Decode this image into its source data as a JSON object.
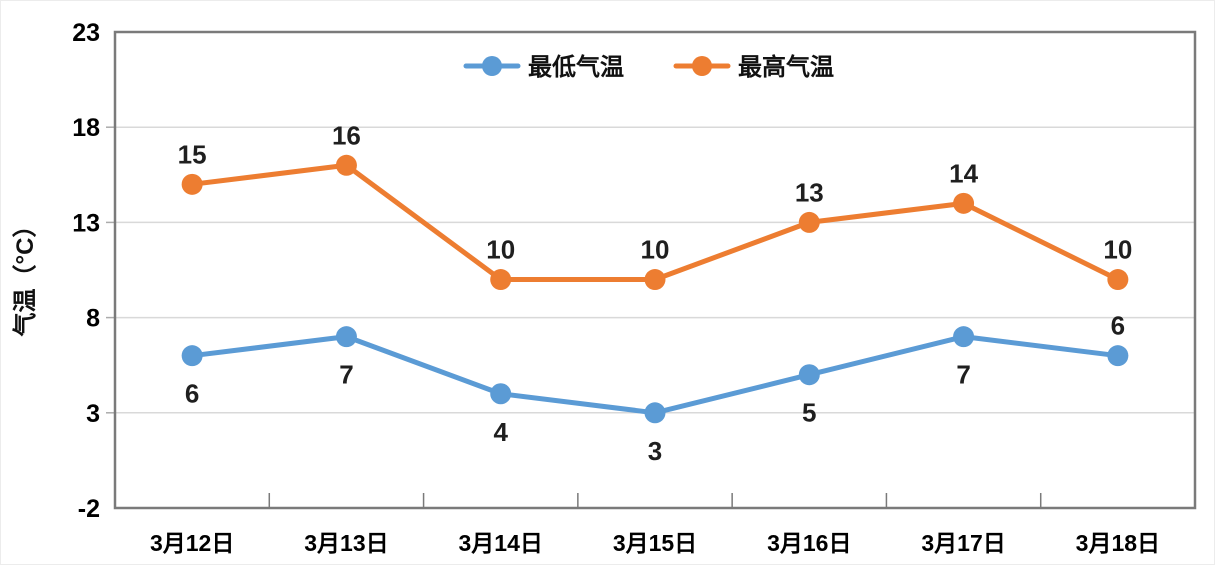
{
  "chart_data": {
    "type": "line",
    "title": "",
    "ylabel": "气温（°C）",
    "xlabel": "",
    "categories": [
      "3月12日",
      "3月13日",
      "3月14日",
      "3月15日",
      "3月16日",
      "3月17日",
      "3月18日"
    ],
    "series": [
      {
        "name": "最低气温",
        "color": "#5B9BD5",
        "values": [
          6,
          7,
          4,
          3,
          5,
          7,
          6
        ],
        "label_positions": [
          "below",
          "below",
          "below",
          "below",
          "below",
          "below",
          "above"
        ]
      },
      {
        "name": "最高气温",
        "color": "#ED7D31",
        "values": [
          15,
          16,
          10,
          10,
          13,
          14,
          10
        ],
        "label_positions": [
          "above",
          "above",
          "above",
          "above",
          "above",
          "above",
          "above"
        ]
      }
    ],
    "ylim": [
      -2,
      23
    ],
    "yticks": [
      -2,
      3,
      8,
      13,
      18,
      23
    ],
    "grid": true,
    "legend_position": "top-center",
    "colors": {
      "grid": "#D9D9D9",
      "axis_border": "#7A7A7A",
      "minor_tick": "#ABABAB",
      "tick_label": "#000000",
      "data_label": "#1F1F1F",
      "background": "#FFFFFF"
    }
  }
}
